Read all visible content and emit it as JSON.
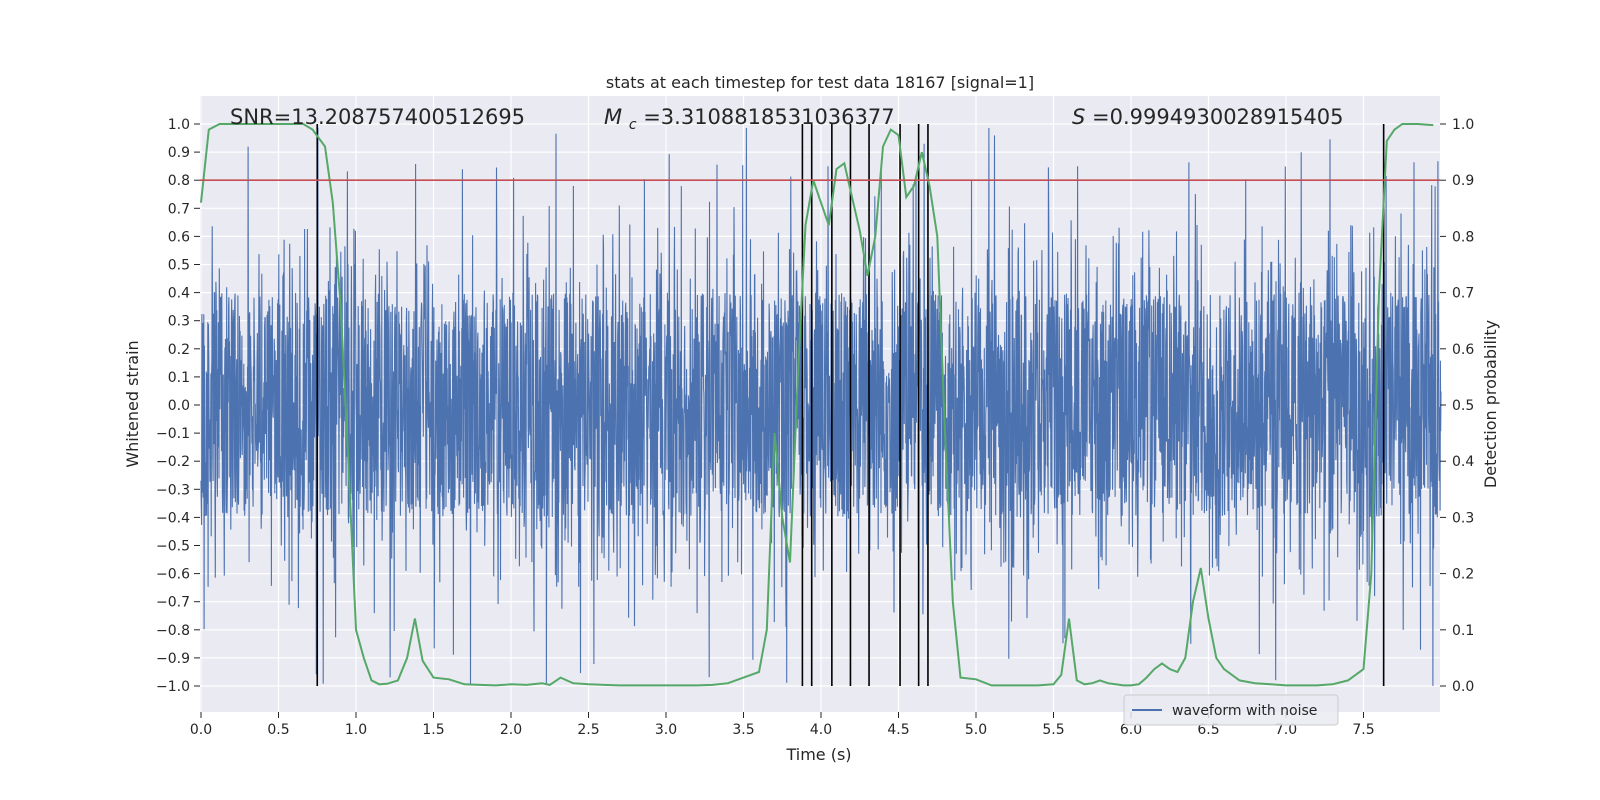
{
  "chart_data": {
    "type": "line",
    "title": "stats at each timestep for test data 18167 [signal=1]",
    "xlabel": "Time (s)",
    "ylabel": "Whitened strain",
    "ylabel_right": "Detection probability",
    "xlim": [
      0.0,
      8.0
    ],
    "ylim": [
      -1.05,
      1.05
    ],
    "ylim_right": [
      -0.05,
      1.03
    ],
    "xticks": [
      "0.0",
      "0.5",
      "1.0",
      "1.5",
      "2.0",
      "2.5",
      "3.0",
      "3.5",
      "4.0",
      "4.5",
      "5.0",
      "5.5",
      "6.0",
      "6.5",
      "7.0",
      "7.5"
    ],
    "yticks": [
      "1.0",
      "0.9",
      "0.8",
      "0.7",
      "0.6",
      "0.5",
      "0.4",
      "0.3",
      "0.2",
      "0.1",
      "0.0",
      "-0.1",
      "-0.2",
      "-0.3",
      "-0.4",
      "-0.5",
      "-0.6",
      "-0.7",
      "-0.8",
      "-0.9",
      "-1.0"
    ],
    "yticks_right": [
      "1.0",
      "0.9",
      "0.8",
      "0.7",
      "0.6",
      "0.5",
      "0.4",
      "0.3",
      "0.2",
      "0.1",
      "0.0"
    ],
    "grid": true,
    "legend_position": "lower-right",
    "annotations": {
      "snr": "SNR=13.208757400512695",
      "mc_symbol": "M",
      "mc_sub": "c",
      "mc_value": "=3.3108818531036377",
      "s_symbol": "S",
      "s_value": "=0.9994930028915405"
    },
    "threshold": 0.9,
    "detection_times": [
      0.75,
      3.88,
      3.94,
      4.07,
      4.19,
      4.31,
      4.51,
      4.63,
      4.69,
      7.63
    ],
    "series": [
      {
        "name": "waveform with noise",
        "kind": "strain",
        "color": "#4c72b0",
        "duration": 8.0,
        "core_amplitude": 0.4,
        "spike_max": 1.0,
        "legend": true
      },
      {
        "kind": "probability",
        "color": "#55a868",
        "x": [
          0.0,
          0.05,
          0.12,
          0.2,
          0.3,
          0.4,
          0.5,
          0.6,
          0.66,
          0.72,
          0.8,
          0.85,
          0.9,
          0.95,
          1.0,
          1.05,
          1.1,
          1.15,
          1.2,
          1.27,
          1.33,
          1.38,
          1.43,
          1.5,
          1.6,
          1.7,
          1.8,
          1.9,
          2.0,
          2.1,
          2.2,
          2.25,
          2.32,
          2.4,
          2.5,
          2.6,
          2.7,
          2.8,
          2.9,
          3.0,
          3.1,
          3.2,
          3.3,
          3.4,
          3.5,
          3.6,
          3.65,
          3.7,
          3.75,
          3.8,
          3.85,
          3.9,
          3.95,
          4.0,
          4.05,
          4.1,
          4.15,
          4.2,
          4.25,
          4.3,
          4.35,
          4.4,
          4.45,
          4.5,
          4.55,
          4.6,
          4.65,
          4.7,
          4.75,
          4.8,
          4.85,
          4.9,
          5.0,
          5.1,
          5.2,
          5.3,
          5.4,
          5.5,
          5.55,
          5.6,
          5.65,
          5.7,
          5.75,
          5.8,
          5.85,
          5.9,
          5.95,
          6.0,
          6.05,
          6.1,
          6.15,
          6.2,
          6.25,
          6.3,
          6.35,
          6.4,
          6.45,
          6.5,
          6.55,
          6.6,
          6.7,
          6.8,
          6.9,
          7.0,
          7.1,
          7.2,
          7.3,
          7.4,
          7.5,
          7.55,
          7.6,
          7.65,
          7.7,
          7.75,
          7.8,
          7.85,
          7.9,
          7.95
        ],
        "y": [
          0.86,
          0.99,
          1.0,
          1.0,
          1.0,
          1.0,
          1.0,
          1.0,
          1.0,
          0.99,
          0.96,
          0.86,
          0.68,
          0.4,
          0.1,
          0.05,
          0.01,
          0.003,
          0.004,
          0.01,
          0.05,
          0.12,
          0.045,
          0.015,
          0.012,
          0.003,
          0.002,
          0.001,
          0.003,
          0.002,
          0.005,
          0.002,
          0.015,
          0.005,
          0.003,
          0.002,
          0.001,
          0.001,
          0.001,
          0.001,
          0.001,
          0.001,
          0.002,
          0.005,
          0.015,
          0.025,
          0.1,
          0.45,
          0.3,
          0.22,
          0.55,
          0.82,
          0.9,
          0.86,
          0.82,
          0.92,
          0.93,
          0.87,
          0.81,
          0.73,
          0.8,
          0.96,
          0.99,
          0.98,
          0.87,
          0.89,
          0.95,
          0.89,
          0.8,
          0.45,
          0.15,
          0.015,
          0.012,
          0.001,
          0.001,
          0.001,
          0.001,
          0.003,
          0.02,
          0.12,
          0.01,
          0.003,
          0.005,
          0.01,
          0.005,
          0.003,
          0.001,
          0.001,
          0.003,
          0.015,
          0.03,
          0.04,
          0.03,
          0.025,
          0.05,
          0.15,
          0.21,
          0.12,
          0.05,
          0.03,
          0.01,
          0.005,
          0.003,
          0.001,
          0.001,
          0.001,
          0.003,
          0.01,
          0.03,
          0.2,
          0.7,
          0.97,
          0.99,
          1.0,
          1.0,
          1.0,
          0.999,
          0.998
        ],
        "legend": false
      }
    ]
  }
}
